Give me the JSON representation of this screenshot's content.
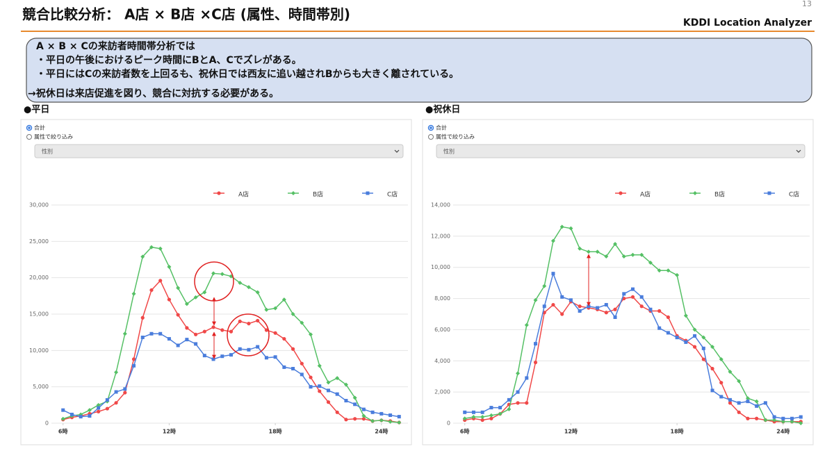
{
  "header": {
    "title": "競合比較分析： A店 × B店 ×C店 (属性、時間帯別)",
    "page_number": "13",
    "brand": "KDDI Location Analyzer"
  },
  "callout": [
    "A × B × Cの来訪者時間帯分析では",
    "・平日の午後におけるピーク時間にBとA、Cでズレがある。",
    "・平日にはCの来訪者数を上回るも、祝休日では西友に追い越されBからも大きく離されている。",
    "→祝休日は来店促進を図り、競合に対抗する必要がある。"
  ],
  "panels": [
    {
      "options": [
        "合計",
        "属性で絞り込み"
      ],
      "select": "性別"
    },
    {
      "options": [
        "合計",
        "属性で絞り込み"
      ],
      "select": "性別"
    }
  ],
  "chart_data": [
    {
      "type": "line",
      "title": "●平日",
      "x": [
        6,
        6.5,
        7,
        7.5,
        8,
        8.5,
        9,
        9.5,
        10,
        10.5,
        11,
        11.5,
        12,
        12.5,
        13,
        13.5,
        14,
        14.5,
        15,
        15.5,
        16,
        16.5,
        17,
        17.5,
        18,
        18.5,
        19,
        19.5,
        20,
        20.5,
        21,
        21.5,
        22,
        22.5,
        23,
        23.5,
        24,
        24.5,
        25
      ],
      "xlim": [
        5.5,
        25.5
      ],
      "xticks": [
        {
          "value": 6,
          "label": "6時"
        },
        {
          "value": 12,
          "label": "12時"
        },
        {
          "value": 18,
          "label": "18時"
        },
        {
          "value": 24,
          "label": "24時"
        }
      ],
      "ylim": [
        0,
        30000
      ],
      "yticks": [
        0,
        {
          "value": 5000,
          "label": "5,000"
        },
        {
          "value": 10000,
          "label": "10,000"
        },
        {
          "value": 15000,
          "label": "15,000"
        },
        {
          "value": 20000,
          "label": "20,000"
        },
        {
          "value": 25000,
          "label": "25,000"
        },
        {
          "value": 30000,
          "label": "30,000"
        }
      ],
      "grid": true,
      "series": [
        {
          "name": "A店",
          "color": "#f04848",
          "values": [
            500,
            800,
            1000,
            1300,
            1600,
            2000,
            2800,
            4200,
            8800,
            14500,
            18300,
            19600,
            17000,
            14900,
            13100,
            12200,
            12600,
            13200,
            12800,
            12600,
            14000,
            13700,
            14100,
            12800,
            12400,
            11600,
            10200,
            8200,
            6300,
            4400,
            2900,
            1500,
            500,
            600,
            600,
            300,
            400,
            300,
            100
          ]
        },
        {
          "name": "B店",
          "color": "#55c065",
          "values": [
            600,
            1000,
            1200,
            1800,
            2500,
            3000,
            7000,
            12300,
            17800,
            22900,
            24200,
            24000,
            21500,
            18600,
            16400,
            17300,
            18000,
            20600,
            20500,
            20200,
            19300,
            18700,
            18000,
            15600,
            15800,
            17000,
            15000,
            13800,
            12200,
            7900,
            5600,
            6200,
            5300,
            3500,
            1000,
            300,
            400,
            200,
            100
          ]
        },
        {
          "name": "C店",
          "color": "#4a7ddc",
          "values": [
            1800,
            1200,
            900,
            1000,
            2100,
            3200,
            4300,
            4700,
            7900,
            11800,
            12300,
            12300,
            11600,
            10700,
            11500,
            10900,
            9300,
            8800,
            9200,
            9400,
            10200,
            10100,
            10500,
            9000,
            9100,
            7700,
            7500,
            6700,
            5000,
            5100,
            4500,
            4000,
            3100,
            2600,
            1900,
            1500,
            1300,
            1100,
            900
          ]
        }
      ]
    },
    {
      "type": "line",
      "title": "●祝休日",
      "x": [
        6,
        6.5,
        7,
        7.5,
        8,
        8.5,
        9,
        9.5,
        10,
        10.5,
        11,
        11.5,
        12,
        12.5,
        13,
        13.5,
        14,
        14.5,
        15,
        15.5,
        16,
        16.5,
        17,
        17.5,
        18,
        18.5,
        19,
        19.5,
        20,
        20.5,
        21,
        21.5,
        22,
        22.5,
        23,
        23.5,
        24,
        24.5,
        25
      ],
      "xlim": [
        5.5,
        25.5
      ],
      "xticks": [
        {
          "value": 6,
          "label": "6時"
        },
        {
          "value": 12,
          "label": "12時"
        },
        {
          "value": 18,
          "label": "18時"
        },
        {
          "value": 24,
          "label": "24時"
        }
      ],
      "ylim": [
        0,
        14000
      ],
      "yticks": [
        0,
        {
          "value": 2000,
          "label": "2,000"
        },
        {
          "value": 4000,
          "label": "4,000"
        },
        {
          "value": 6000,
          "label": "6,000"
        },
        {
          "value": 8000,
          "label": "8,000"
        },
        {
          "value": 10000,
          "label": "10,000"
        },
        {
          "value": 12000,
          "label": "12,000"
        },
        {
          "value": 14000,
          "label": "14,000"
        }
      ],
      "grid": true,
      "series": [
        {
          "name": "A店",
          "color": "#f04848",
          "values": [
            200,
            300,
            200,
            300,
            600,
            1200,
            1300,
            1300,
            3900,
            7100,
            7600,
            7000,
            7800,
            7500,
            7400,
            7300,
            7100,
            7300,
            8000,
            8100,
            7500,
            7200,
            7200,
            6800,
            5600,
            5300,
            4900,
            4100,
            3500,
            2600,
            1300,
            700,
            300,
            300,
            200,
            100,
            100,
            100,
            100
          ]
        },
        {
          "name": "B店",
          "color": "#55c065",
          "values": [
            300,
            400,
            400,
            500,
            600,
            900,
            3200,
            6300,
            7900,
            8800,
            11700,
            12600,
            12500,
            11200,
            11000,
            11000,
            10700,
            11500,
            10700,
            10800,
            10800,
            10300,
            9800,
            9800,
            9500,
            6900,
            6000,
            5500,
            4900,
            4100,
            3300,
            2700,
            1600,
            1400,
            200,
            200,
            100,
            100,
            0
          ]
        },
        {
          "name": "C店",
          "color": "#4a7ddc",
          "values": [
            700,
            700,
            700,
            1000,
            1000,
            1500,
            2000,
            2900,
            5100,
            7500,
            9600,
            8100,
            7900,
            7200,
            7500,
            7400,
            7600,
            6800,
            8300,
            8600,
            8100,
            7300,
            6100,
            5800,
            5500,
            5200,
            5600,
            4800,
            2100,
            1700,
            1500,
            1300,
            1400,
            1100,
            1300,
            400,
            300,
            300,
            400
          ]
        }
      ]
    }
  ]
}
